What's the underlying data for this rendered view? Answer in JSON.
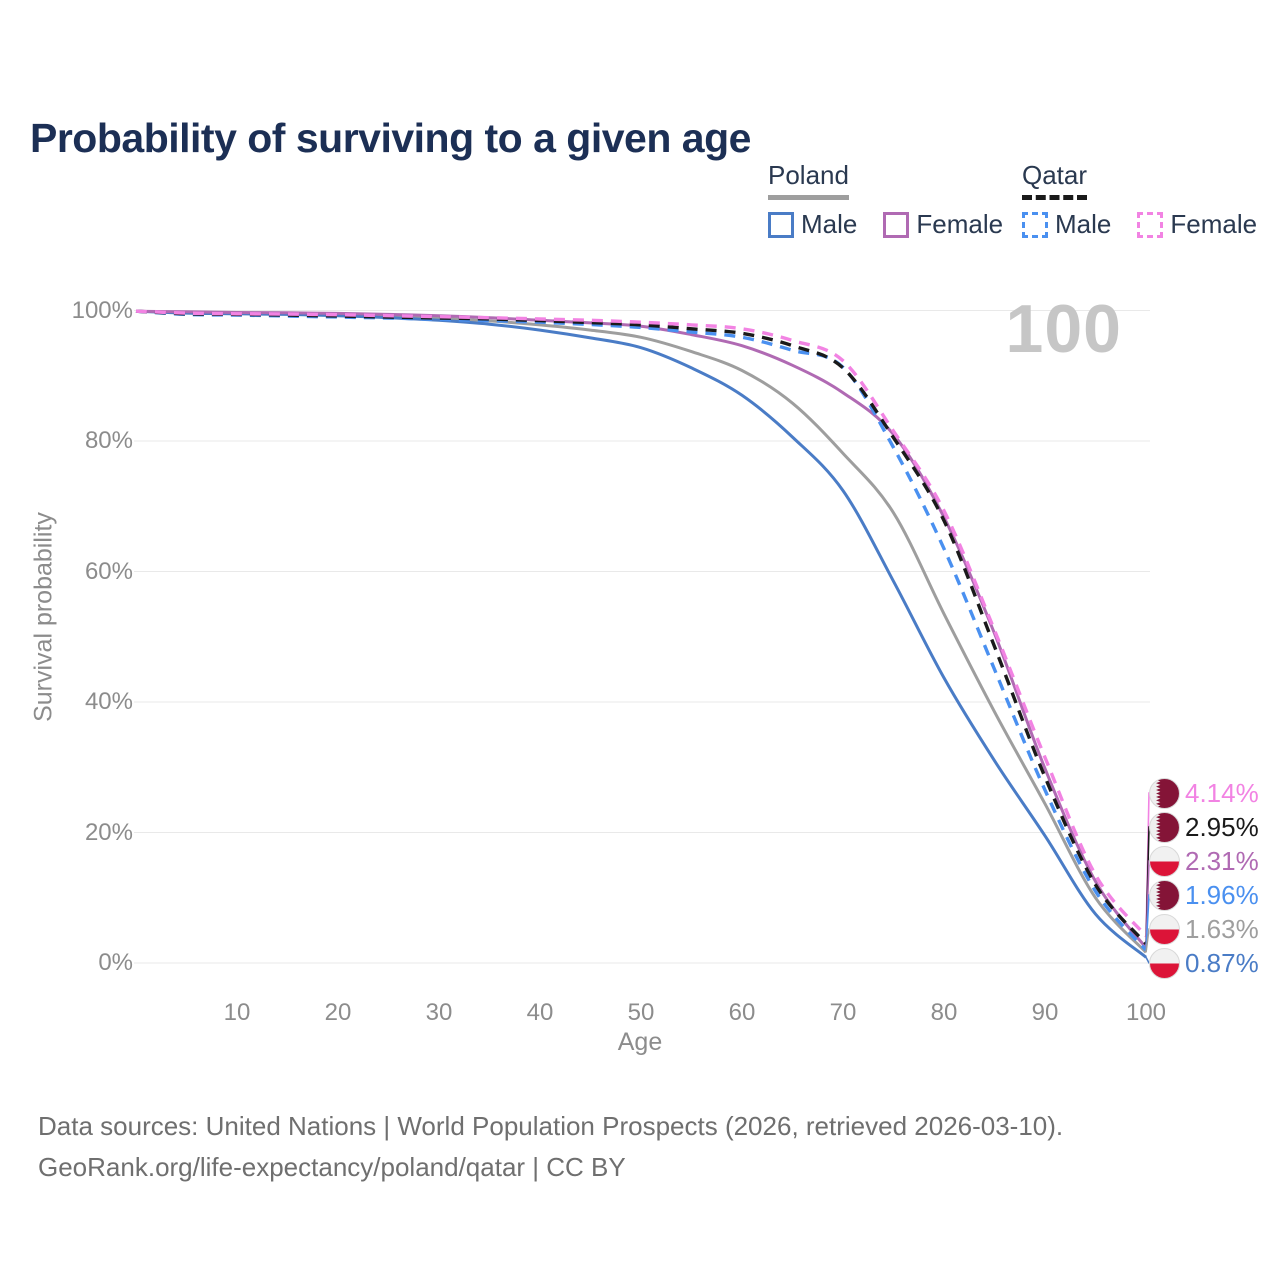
{
  "title": "Probability of surviving to a given age",
  "legend": {
    "groups": [
      {
        "country": "Poland",
        "line_style": "solid",
        "underline_color": "#9e9e9e",
        "items": [
          {
            "label": "Male",
            "color": "#4a7cc6"
          },
          {
            "label": "Female",
            "color": "#b06ab3"
          }
        ]
      },
      {
        "country": "Qatar",
        "line_style": "dashed",
        "underline_color": "#1a1a1a",
        "items": [
          {
            "label": "Male",
            "color": "#4a90f0"
          },
          {
            "label": "Female",
            "color": "#f283e3"
          }
        ]
      }
    ]
  },
  "chart_data": {
    "type": "line",
    "title": "Probability of surviving to a given age",
    "xlabel": "Age",
    "ylabel": "Survival probability",
    "xlim": [
      0,
      100
    ],
    "ylim": [
      0,
      100
    ],
    "x_ticks": [
      10,
      20,
      30,
      40,
      50,
      60,
      70,
      80,
      90,
      100
    ],
    "y_tick_values": [
      0,
      20,
      40,
      60,
      80,
      100
    ],
    "y_tick_labels": [
      "0%",
      "20%",
      "40%",
      "60%",
      "80%",
      "100%"
    ],
    "grid": "horizontal",
    "legend_position": "top-right",
    "end_annotation": "100",
    "ages": [
      0,
      5,
      10,
      15,
      20,
      25,
      30,
      35,
      40,
      45,
      50,
      55,
      60,
      65,
      70,
      75,
      80,
      85,
      90,
      95,
      100
    ],
    "series": [
      {
        "id": "poland-both-sexes",
        "country": "Poland",
        "group": "Both sexes",
        "color": "#9e9e9e",
        "dashed": false,
        "values": [
          99.9,
          99.7,
          99.6,
          99.5,
          99.3,
          99.1,
          98.8,
          98.4,
          97.8,
          97.0,
          95.9,
          93.7,
          90.8,
          85.8,
          78.1,
          69.0,
          53.5,
          38.5,
          24.4,
          10.0,
          1.63
        ],
        "end_value": 1.63
      },
      {
        "id": "poland-male",
        "country": "Poland",
        "group": "Male",
        "color": "#4a7cc6",
        "dashed": false,
        "values": [
          99.9,
          99.6,
          99.5,
          99.4,
          99.2,
          98.9,
          98.5,
          97.9,
          97.0,
          95.8,
          94.3,
          91.2,
          87.0,
          80.6,
          72.4,
          58.5,
          43.7,
          31.0,
          19.5,
          7.5,
          0.87
        ],
        "end_value": 0.87
      },
      {
        "id": "poland-female",
        "country": "Poland",
        "group": "Female",
        "color": "#b06ab3",
        "dashed": false,
        "values": [
          99.9,
          99.8,
          99.7,
          99.65,
          99.55,
          99.4,
          99.2,
          98.9,
          98.5,
          98.1,
          97.6,
          96.3,
          94.6,
          91.6,
          87.4,
          81.0,
          68.3,
          50.5,
          29.8,
          12.5,
          2.31
        ],
        "end_value": 2.31
      },
      {
        "id": "qatar-male",
        "country": "Qatar",
        "group": "Male",
        "color": "#4a90f0",
        "dashed": true,
        "values": [
          99.9,
          99.4,
          99.3,
          99.15,
          99.0,
          98.85,
          98.65,
          98.45,
          98.2,
          97.85,
          97.4,
          96.7,
          95.9,
          93.9,
          91.3,
          79.0,
          63.5,
          45.0,
          26.5,
          11.0,
          1.96
        ],
        "end_value": 1.96
      },
      {
        "id": "qatar-both-sexes",
        "country": "Qatar",
        "group": "Both sexes",
        "color": "#1a1a1a",
        "dashed": true,
        "values": [
          99.9,
          99.5,
          99.4,
          99.3,
          99.15,
          99.0,
          98.85,
          98.7,
          98.45,
          98.15,
          97.8,
          97.2,
          96.5,
          94.6,
          91.2,
          80.5,
          67.8,
          48.5,
          28.5,
          12.0,
          2.95
        ],
        "end_value": 2.95
      },
      {
        "id": "qatar-female",
        "country": "Qatar",
        "group": "Female",
        "color": "#f283e3",
        "dashed": true,
        "values": [
          99.9,
          99.6,
          99.5,
          99.45,
          99.35,
          99.2,
          99.05,
          98.9,
          98.7,
          98.5,
          98.2,
          97.8,
          97.2,
          95.4,
          92.3,
          81.5,
          69.3,
          51.0,
          31.5,
          13.5,
          4.14
        ],
        "end_value": 4.14
      }
    ],
    "end_labels": [
      {
        "text": "4.14%",
        "flag": "qatar",
        "color": "#f283e3",
        "end_value": 4.14
      },
      {
        "text": "2.95%",
        "flag": "qatar",
        "color": "#1a1a1a",
        "end_value": 2.95
      },
      {
        "text": "2.31%",
        "flag": "poland",
        "color": "#b06ab3",
        "end_value": 2.31
      },
      {
        "text": "1.96%",
        "flag": "qatar",
        "color": "#4a90f0",
        "end_value": 1.96
      },
      {
        "text": "1.63%",
        "flag": "poland",
        "color": "#9e9e9e",
        "end_value": 1.63
      },
      {
        "text": "0.87%",
        "flag": "poland",
        "color": "#4a7cc6",
        "end_value": 0.87
      }
    ]
  },
  "footer": {
    "line1": "Data sources: United Nations | World Population Prospects (2026, retrieved 2026-03-10).",
    "line2": "GeoRank.org/life-expectancy/poland/qatar | CC BY"
  }
}
